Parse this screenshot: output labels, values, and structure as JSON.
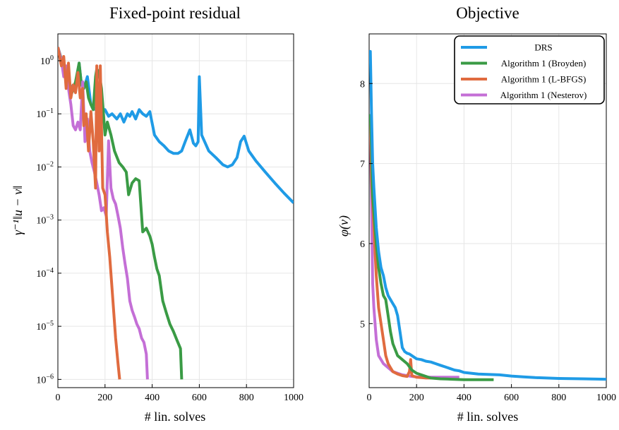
{
  "chart_data": [
    {
      "type": "line",
      "title": "Fixed-point residual",
      "xlabel": "# lin. solves",
      "ylabel": "γ⁻¹‖u − v‖",
      "xlim": [
        0,
        1000
      ],
      "ylim": [
        7e-07,
        3.2
      ],
      "yscale": "log",
      "grid": true,
      "xticks": [
        0,
        200,
        400,
        600,
        800,
        1000
      ],
      "xtick_labels": [
        "0",
        "200",
        "400",
        "600",
        "800",
        "1000"
      ],
      "yticks": [
        1,
        0.1,
        0.01,
        0.001,
        0.0001,
        1e-05,
        1e-06
      ],
      "ytick_labels": [
        {
          "base": "10",
          "exp": "0"
        },
        {
          "base": "10",
          "exp": "−1"
        },
        {
          "base": "10",
          "exp": "−2"
        },
        {
          "base": "10",
          "exp": "−3"
        },
        {
          "base": "10",
          "exp": "−4"
        },
        {
          "base": "10",
          "exp": "−5"
        },
        {
          "base": "10",
          "exp": "−6"
        }
      ],
      "series": [
        {
          "name": "DRS",
          "color": "#1f9be6",
          "x": [
            0,
            15,
            30,
            45,
            60,
            75,
            90,
            100,
            110,
            125,
            140,
            160,
            180,
            200,
            215,
            230,
            250,
            265,
            280,
            295,
            305,
            315,
            330,
            345,
            360,
            375,
            390,
            410,
            430,
            450,
            470,
            490,
            510,
            525,
            540,
            560,
            575,
            585,
            595,
            600,
            610,
            640,
            670,
            700,
            720,
            740,
            760,
            775,
            790,
            810,
            840,
            880,
            920,
            960,
            1000
          ],
          "y": [
            1.6,
            1.0,
            0.6,
            0.4,
            0.3,
            0.35,
            0.9,
            0.35,
            0.3,
            0.5,
            0.15,
            0.12,
            0.1,
            0.12,
            0.09,
            0.1,
            0.08,
            0.1,
            0.07,
            0.1,
            0.09,
            0.11,
            0.08,
            0.12,
            0.1,
            0.09,
            0.11,
            0.04,
            0.03,
            0.025,
            0.02,
            0.018,
            0.018,
            0.02,
            0.03,
            0.05,
            0.028,
            0.025,
            0.03,
            0.5,
            0.04,
            0.02,
            0.015,
            0.011,
            0.01,
            0.011,
            0.015,
            0.03,
            0.038,
            0.02,
            0.013,
            0.008,
            0.005,
            0.0032,
            0.0021
          ]
        },
        {
          "name": "Algorithm 1 (Broyden)",
          "color": "#3a9b45",
          "x": [
            0,
            20,
            35,
            50,
            60,
            75,
            90,
            100,
            110,
            120,
            130,
            140,
            150,
            160,
            165,
            175,
            185,
            195,
            200,
            210,
            225,
            240,
            260,
            275,
            290,
            300,
            315,
            330,
            345,
            360,
            375,
            390,
            400,
            410,
            420,
            430,
            445,
            460,
            475,
            490,
            505,
            520,
            525
          ],
          "y": [
            1.8,
            0.9,
            0.5,
            0.3,
            0.25,
            0.4,
            0.9,
            0.35,
            0.3,
            0.4,
            0.2,
            0.15,
            0.12,
            0.5,
            0.7,
            0.6,
            0.3,
            0.08,
            0.04,
            0.07,
            0.04,
            0.02,
            0.012,
            0.01,
            0.008,
            0.003,
            0.005,
            0.006,
            0.0055,
            0.0006,
            0.0007,
            0.0005,
            0.00035,
            0.0002,
            0.00012,
            9e-05,
            3e-05,
            1.8e-05,
            1.1e-05,
            8e-06,
            5.5e-06,
            3.8e-06,
            1e-06
          ]
        },
        {
          "name": "Algorithm 1 (L-BFGS)",
          "color": "#e06b3f",
          "x": [
            0,
            15,
            25,
            35,
            45,
            55,
            65,
            75,
            85,
            95,
            105,
            110,
            120,
            130,
            140,
            150,
            160,
            165,
            175,
            180,
            190,
            200,
            210,
            220,
            230,
            245,
            255,
            262
          ],
          "y": [
            1.8,
            0.8,
            1.2,
            0.3,
            0.9,
            0.2,
            0.35,
            0.25,
            0.6,
            0.2,
            0.3,
            0.06,
            0.1,
            0.02,
            0.11,
            0.03,
            0.004,
            0.8,
            0.02,
            0.8,
            0.004,
            0.003,
            0.0006,
            0.0002,
            5e-05,
            6e-06,
            2e-06,
            1e-06
          ]
        },
        {
          "name": "Algorithm 1 (Nesterov)",
          "color": "#c46fd6",
          "x": [
            0,
            15,
            25,
            35,
            45,
            55,
            65,
            75,
            85,
            95,
            105,
            115,
            125,
            135,
            145,
            155,
            165,
            175,
            185,
            195,
            205,
            215,
            225,
            235,
            245,
            255,
            265,
            275,
            285,
            295,
            305,
            315,
            325,
            335,
            345,
            355,
            365,
            375,
            380
          ],
          "y": [
            1.8,
            1.0,
            0.5,
            0.8,
            0.3,
            0.15,
            0.06,
            0.05,
            0.07,
            0.05,
            0.4,
            0.03,
            0.08,
            0.02,
            0.012,
            0.008,
            0.005,
            0.003,
            0.0015,
            0.0017,
            0.0012,
            0.031,
            0.004,
            0.0025,
            0.002,
            0.0012,
            0.0007,
            0.0003,
            0.00015,
            8e-05,
            3e-05,
            2e-05,
            1.5e-05,
            1.1e-05,
            9e-06,
            6e-06,
            5e-06,
            3e-06,
            1e-06
          ]
        }
      ]
    },
    {
      "type": "line",
      "title": "Objective",
      "xlabel": "# lin. solves",
      "ylabel": "φ(v)",
      "xlim": [
        0,
        1000
      ],
      "ylim": [
        4.2,
        8.62
      ],
      "grid": true,
      "legend": "top-right",
      "xticks": [
        0,
        200,
        400,
        600,
        800,
        1000
      ],
      "xtick_labels": [
        "0",
        "200",
        "400",
        "600",
        "800",
        "1000"
      ],
      "yticks": [
        5,
        6,
        7,
        8
      ],
      "ytick_labels": [
        "5",
        "6",
        "7",
        "8"
      ],
      "series": [
        {
          "name": "DRS",
          "color": "#1f9be6",
          "x": [
            0,
            5,
            10,
            15,
            20,
            30,
            40,
            50,
            60,
            70,
            80,
            90,
            100,
            110,
            120,
            130,
            140,
            150,
            160,
            170,
            180,
            190,
            200,
            220,
            240,
            260,
            280,
            300,
            320,
            340,
            360,
            380,
            400,
            430,
            460,
            500,
            550,
            600,
            650,
            700,
            800,
            900,
            1000
          ],
          "y": [
            8.4,
            8.4,
            7.6,
            7.0,
            6.7,
            6.2,
            5.9,
            5.7,
            5.6,
            5.45,
            5.35,
            5.3,
            5.25,
            5.2,
            5.1,
            4.9,
            4.7,
            4.65,
            4.63,
            4.62,
            4.6,
            4.58,
            4.56,
            4.55,
            4.53,
            4.52,
            4.5,
            4.48,
            4.46,
            4.44,
            4.42,
            4.41,
            4.39,
            4.38,
            4.37,
            4.365,
            4.36,
            4.345,
            4.335,
            4.325,
            4.315,
            4.31,
            4.305
          ]
        },
        {
          "name": "Algorithm 1 (Broyden)",
          "color": "#3a9b45",
          "x": [
            0,
            5,
            10,
            15,
            20,
            30,
            40,
            50,
            60,
            70,
            80,
            90,
            100,
            120,
            140,
            160,
            180,
            200,
            220,
            240,
            260,
            300,
            350,
            400,
            450,
            500,
            525
          ],
          "y": [
            7.6,
            7.6,
            7.2,
            6.6,
            6.4,
            6.0,
            5.7,
            5.5,
            5.35,
            5.3,
            5.1,
            4.9,
            4.75,
            4.6,
            4.55,
            4.5,
            4.42,
            4.38,
            4.36,
            4.34,
            4.32,
            4.31,
            4.305,
            4.3,
            4.3,
            4.3,
            4.3
          ]
        },
        {
          "name": "Algorithm 1 (L-BFGS)",
          "color": "#e06b3f",
          "x": [
            0,
            5,
            10,
            20,
            30,
            40,
            50,
            60,
            70,
            80,
            90,
            100,
            120,
            140,
            160,
            170,
            175,
            180,
            190,
            200,
            220,
            240,
            262
          ],
          "y": [
            7.6,
            7.6,
            6.8,
            6.2,
            5.6,
            5.2,
            5.0,
            4.8,
            4.6,
            4.5,
            4.45,
            4.4,
            4.37,
            4.35,
            4.34,
            4.4,
            4.55,
            4.35,
            4.34,
            4.33,
            4.325,
            4.32,
            4.32
          ]
        },
        {
          "name": "Algorithm 1 (Nesterov)",
          "color": "#c46fd6",
          "x": [
            0,
            5,
            10,
            15,
            20,
            30,
            40,
            50,
            60,
            80,
            100,
            120,
            140,
            160,
            180,
            200,
            240,
            280,
            320,
            360,
            380
          ],
          "y": [
            7.5,
            7.5,
            6.5,
            5.5,
            5.2,
            4.8,
            4.6,
            4.55,
            4.5,
            4.45,
            4.4,
            4.38,
            4.36,
            4.35,
            4.34,
            4.335,
            4.33,
            4.33,
            4.33,
            4.33,
            4.33
          ]
        }
      ]
    }
  ]
}
